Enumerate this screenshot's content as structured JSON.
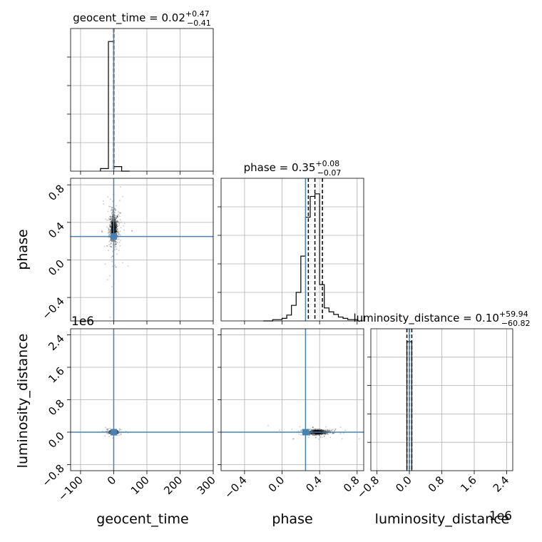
{
  "chart_data": {
    "type": "corner",
    "parameters": [
      "geocent_time",
      "phase",
      "luminosity_distance"
    ],
    "truths": {
      "geocent_time": 0,
      "phase": 0.25,
      "luminosity_distance": 0
    },
    "colors": {
      "truth": "#4682b4",
      "hist": "#000000",
      "grid": "#b0b0b0",
      "quantile": "#000000",
      "scatter": "#000000"
    },
    "axes": {
      "geocent_time": {
        "range": [
          -130,
          300
        ],
        "ticks": [
          -100,
          0,
          100,
          200,
          300
        ],
        "tick_labels": [
          "−100",
          "0",
          "100",
          "200",
          "300"
        ]
      },
      "phase": {
        "range": [
          -0.65,
          0.87
        ],
        "ticks": [
          -0.4,
          0.0,
          0.4,
          0.8
        ],
        "tick_labels": [
          "−0.4",
          "0.0",
          "0.4",
          "0.8"
        ]
      },
      "luminosity_distance": {
        "range": [
          -950000,
          2550000
        ],
        "ticks": [
          -800000,
          0,
          800000,
          1600000,
          2400000
        ],
        "tick_labels": [
          "−0.8",
          "0.0",
          "0.8",
          "1.6",
          "2.4"
        ],
        "offset_label": "1e6"
      }
    },
    "diagonal": [
      {
        "param": "geocent_time",
        "title_name": "geocent_time",
        "title_value": "0.02",
        "title_plus": "+0.47",
        "title_minus": "−0.41",
        "quantiles": [
          -0.39,
          0.02,
          0.49
        ],
        "bin_edges": [
          -40,
          -16,
          0,
          24,
          48
        ],
        "counts": [
          0.02,
          1.0,
          0.035,
          0
        ],
        "ylim": [
          0,
          1.1
        ]
      },
      {
        "param": "phase",
        "title_name": "phase",
        "title_value": "0.35",
        "title_plus": "+0.08",
        "title_minus": "−0.07",
        "quantiles": [
          0.28,
          0.35,
          0.43
        ],
        "bin_edges": [
          -0.2,
          -0.1,
          0.0,
          0.05,
          0.1,
          0.15,
          0.2,
          0.25,
          0.3,
          0.35,
          0.4,
          0.45,
          0.5,
          0.55,
          0.6,
          0.65,
          0.7,
          0.75,
          0.8
        ],
        "counts": [
          0.0,
          0.01,
          0.02,
          0.045,
          0.12,
          0.22,
          0.5,
          0.8,
          0.96,
          0.98,
          0.28,
          0.1,
          0.07,
          0.05,
          0.03,
          0.02,
          0.01,
          0.01
        ],
        "ylim": [
          0,
          1.1
        ]
      },
      {
        "param": "luminosity_distance",
        "title_name": "luminosity_distance",
        "title_value": "0.10",
        "title_plus": "+59.94",
        "title_minus": "−60.82",
        "quantiles": [
          -60.72,
          0.1,
          60.04
        ],
        "bin_edges": [
          -60000,
          0,
          60000
        ],
        "counts": [
          1.0,
          1.0
        ],
        "ylim": [
          0,
          1.1
        ]
      }
    ],
    "scatter": [
      {
        "x": "geocent_time",
        "y": "phase",
        "center": [
          0,
          0.33
        ],
        "spread": [
          7,
          0.09
        ],
        "tails": [
          [
            -35,
            0.3
          ],
          [
            55,
            0.31
          ],
          [
            0,
            0.7
          ],
          [
            0,
            -0.25
          ],
          [
            20,
            0.5
          ],
          [
            -20,
            0.15
          ]
        ]
      },
      {
        "x": "geocent_time",
        "y": "luminosity_distance",
        "center": [
          0,
          0
        ],
        "spread": [
          6,
          20000
        ],
        "tails": [
          [
            -10,
            0
          ],
          [
            10,
            0
          ]
        ]
      },
      {
        "x": "phase",
        "y": "luminosity_distance",
        "center": [
          0.38,
          0
        ],
        "spread": [
          0.06,
          30000
        ],
        "tails": [
          [
            0.33,
            120000
          ],
          [
            0.45,
            -100000
          ],
          [
            0.28,
            0
          ]
        ]
      }
    ]
  }
}
